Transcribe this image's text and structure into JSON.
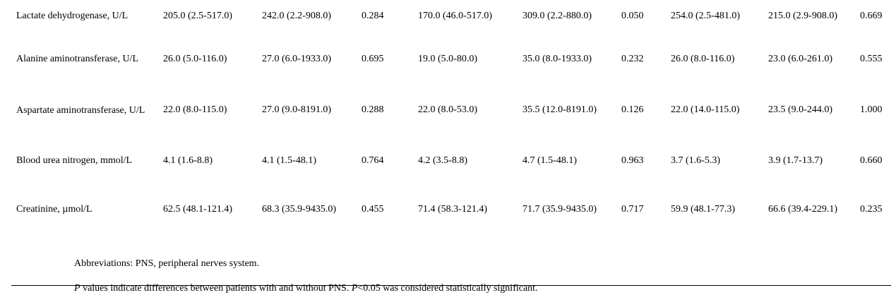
{
  "table": {
    "rows": [
      {
        "label": "Lactate dehydrogenase, U/L",
        "cells": [
          "205.0 (2.5-517.0)",
          "242.0 (2.2-908.0)",
          "0.284",
          "170.0 (46.0-517.0)",
          "309.0 (2.2-880.0)",
          "0.050",
          "254.0 (2.5-481.0)",
          "215.0 (2.9-908.0)",
          "0.669"
        ]
      },
      {
        "label": "Alanine aminotransferase, U/L",
        "cells": [
          "26.0 (5.0-116.0)",
          "27.0 (6.0-1933.0)",
          "0.695",
          "19.0 (5.0-80.0)",
          "35.0 (8.0-1933.0)",
          "0.232",
          "26.0 (8.0-116.0)",
          "23.0 (6.0-261.0)",
          "0.555"
        ]
      },
      {
        "label": "Aspartate aminotransferase, U/L",
        "cells": [
          "22.0 (8.0-115.0)",
          "27.0 (9.0-8191.0)",
          "0.288",
          "22.0 (8.0-53.0)",
          "35.5 (12.0-8191.0)",
          "0.126",
          "22.0 (14.0-115.0)",
          "23.5 (9.0-244.0)",
          "1.000"
        ]
      },
      {
        "label": "Blood urea nitrogen, mmol/L",
        "cells": [
          "4.1 (1.6-8.8)",
          "4.1 (1.5-48.1)",
          "0.764",
          "4.2 (3.5-8.8)",
          "4.7 (1.5-48.1)",
          "0.963",
          "3.7 (1.6-5.3)",
          "3.9 (1.7-13.7)",
          "0.660"
        ]
      },
      {
        "label": "Creatinine, µmol/L",
        "cells": [
          "62.5 (48.1-121.4)",
          "68.3 (35.9-9435.0)",
          "0.455",
          "71.4 (58.3-121.4)",
          "71.7 (35.9-9435.0)",
          "0.717",
          "59.9 (48.1-77.3)",
          "66.6 (39.4-229.1)",
          "0.235"
        ]
      }
    ]
  },
  "notes": {
    "abbreviations": "Abbreviations: PNS, peripheral nerves system.",
    "p_symbol": "P",
    "p_text_1": " values indicate differences between patients with and without PNS. ",
    "p_symbol_2": "P",
    "p_text_2": "<0.05 was considered statistically significant."
  }
}
